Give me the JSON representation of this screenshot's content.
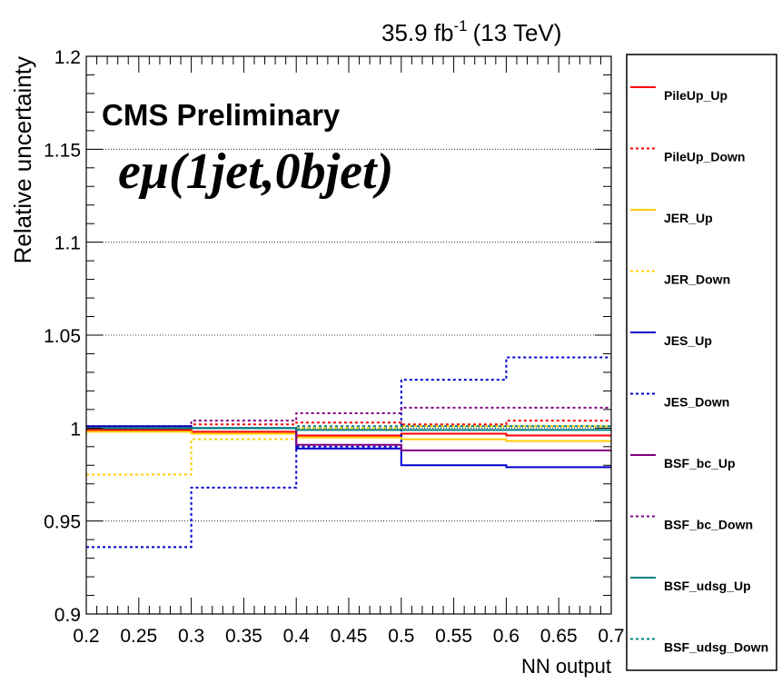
{
  "chart_data": {
    "type": "line",
    "title": "",
    "lumi_label": "35.9 fb",
    "lumi_exponent": "-1",
    "energy_label": "(13 TeV)",
    "experiment_label": "CMS Preliminary",
    "channel_label": "eμ(1jet,0bjet)",
    "xlabel": "NN output",
    "ylabel": "Relative uncertainty",
    "xlim": [
      0.2,
      0.7
    ],
    "ylim": [
      0.9,
      1.2
    ],
    "x_ticks": [
      "0.2",
      "0.25",
      "0.3",
      "0.35",
      "0.4",
      "0.45",
      "0.5",
      "0.55",
      "0.6",
      "0.65",
      "0.7"
    ],
    "y_ticks": [
      "0.9",
      "0.95",
      "1",
      "1.05",
      "1.1",
      "1.15",
      "1.2"
    ],
    "grid": "horizontal",
    "legend_position": "right",
    "bin_edges": [
      0.2,
      0.3,
      0.4,
      0.5,
      0.6,
      0.7
    ],
    "series": [
      {
        "name": "PileUp_Up",
        "color": "#ff0000",
        "dashed": false,
        "values": [
          0.999,
          0.998,
          0.996,
          0.997,
          0.996
        ]
      },
      {
        "name": "PileUp_Down",
        "color": "#ff0000",
        "dashed": true,
        "values": [
          1.001,
          1.002,
          1.003,
          1.002,
          1.004
        ]
      },
      {
        "name": "JER_Up",
        "color": "#ffcc00",
        "dashed": false,
        "values": [
          0.998,
          0.997,
          0.995,
          0.994,
          0.993
        ]
      },
      {
        "name": "JER_Down",
        "color": "#ffcc00",
        "dashed": true,
        "values": [
          0.975,
          0.994,
          1.0,
          1.001,
          1.001
        ]
      },
      {
        "name": "JES_Up",
        "color": "#0000cc",
        "dashed": false,
        "values": [
          1.001,
          1.0,
          0.989,
          0.98,
          0.979
        ]
      },
      {
        "name": "JES_Down",
        "color": "#0000cc",
        "dashed": true,
        "values": [
          0.936,
          0.968,
          0.99,
          1.026,
          1.038
        ]
      },
      {
        "name": "BSF_bc_Up",
        "color": "#800080",
        "dashed": false,
        "values": [
          1.0,
          1.0,
          0.991,
          0.988,
          0.988
        ]
      },
      {
        "name": "BSF_bc_Down",
        "color": "#800080",
        "dashed": true,
        "values": [
          1.0,
          1.004,
          1.008,
          1.011,
          1.011
        ]
      },
      {
        "name": "BSF_udsg_Up",
        "color": "#008080",
        "dashed": false,
        "values": [
          1.0,
          1.0,
          0.999,
          0.999,
          0.999
        ]
      },
      {
        "name": "BSF_udsg_Down",
        "color": "#008080",
        "dashed": true,
        "values": [
          1.0,
          1.0,
          1.001,
          1.001,
          1.001
        ]
      }
    ]
  }
}
